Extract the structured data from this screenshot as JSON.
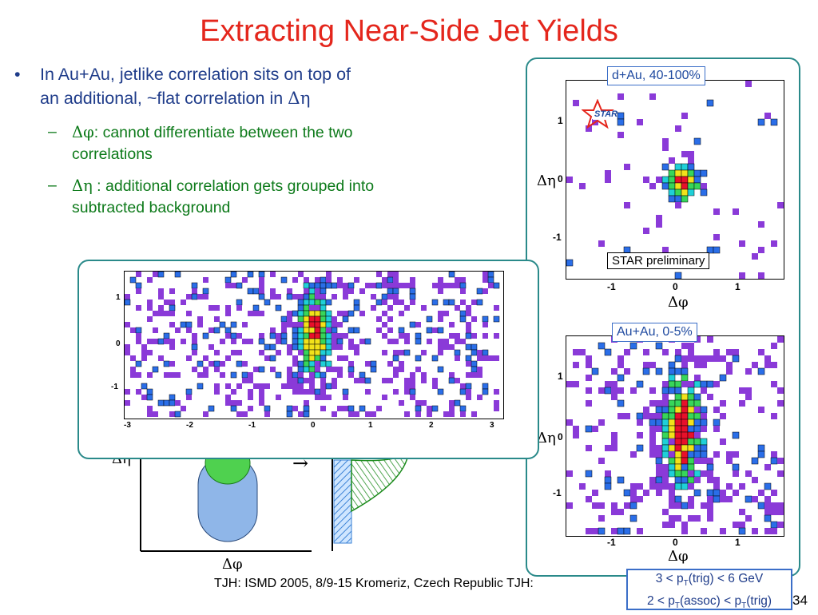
{
  "title": "Extracting Near-Side Jet Yields",
  "bullet": {
    "marker": "•",
    "line1": "In Au+Au, jetlike correlation sits on top of",
    "line2_prefix": "an additional, ~flat correlation in ",
    "line2_greek": "Δη"
  },
  "subbullets": [
    {
      "dash": "–",
      "greek": "Δφ",
      "text_line1": ": cannot differentiate between the two",
      "text_line2": "correlations"
    },
    {
      "dash": "–",
      "greek": "Δη",
      "text_line1": " : additional correlation gets grouped into",
      "text_line2": "subtracted background"
    }
  ],
  "plots": {
    "dau": {
      "tag": "d+Au, 40-100%",
      "prelim": "STAR preliminary",
      "logo": "STAR",
      "yticks": [
        "1",
        "0",
        "-1"
      ],
      "xticks": [
        "-1",
        "0",
        "1"
      ],
      "xlabel": "Δφ",
      "ylabel": "Δη"
    },
    "auau": {
      "tag": "Au+Au, 0-5%",
      "yticks": [
        "1",
        "0",
        "-1"
      ],
      "xticks": [
        "-1",
        "0",
        "1"
      ],
      "xlabel": "Δφ",
      "ylabel": "Δη"
    },
    "wide": {
      "yticks": [
        "1",
        "0",
        "-1"
      ],
      "xticks": [
        "-3",
        "-2",
        "-1",
        "0",
        "1",
        "2",
        "3"
      ]
    }
  },
  "sketch": {
    "xlabel": "Δφ",
    "ylabel": "Δη",
    "arrow": "→"
  },
  "footnote": "TJH: ISMD 2005, 8/9-15 Kromeriz, Czech Republic TJH:",
  "conditions": {
    "line1_a": "3 < p",
    "line1_sub": "T",
    "line1_b": "(trig) < 6 GeV",
    "line2_a": "2 < p",
    "line2_sub1": "T",
    "line2_b": "(assoc) < p",
    "line2_sub2": "T",
    "line2_c": "(trig)"
  },
  "page_number": "34",
  "colors": {
    "title": "#e4261c",
    "bullet": "#1f3c8a",
    "subbullet": "#0d7a1a",
    "panel_border": "#2a8a8a"
  }
}
